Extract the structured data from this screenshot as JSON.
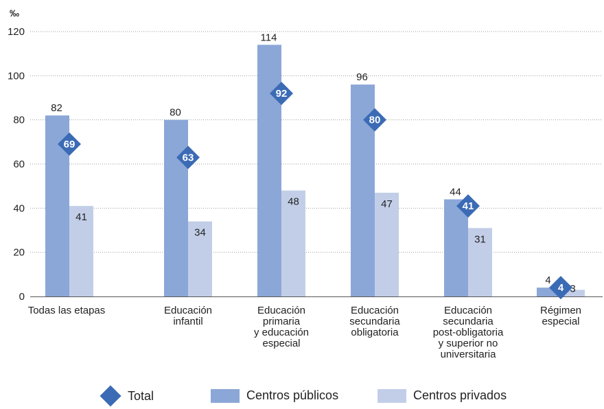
{
  "chart_data": {
    "type": "bar",
    "unit_label": "‰",
    "categories": [
      [
        "Todas las etapas"
      ],
      [
        "Educación",
        "infantil"
      ],
      [
        "Educación",
        "primaria",
        "y educación",
        "especial"
      ],
      [
        "Educación",
        "secundaria",
        "obligatoria"
      ],
      [
        "Educación",
        "secundaria",
        "post-obligatoria",
        "y superior no",
        "universitaria"
      ],
      [
        "Régimen",
        "especial"
      ]
    ],
    "series": [
      {
        "name": "Centros públicos",
        "values": [
          82,
          80,
          114,
          96,
          44,
          4
        ],
        "color": "#8ba7d7"
      },
      {
        "name": "Centros privados",
        "values": [
          41,
          34,
          48,
          47,
          31,
          3
        ],
        "color": "#c2cee8"
      }
    ],
    "total": {
      "name": "Total",
      "values": [
        69,
        63,
        92,
        80,
        41,
        4
      ],
      "color": "#3b6bb5"
    },
    "ylim": [
      0,
      120
    ],
    "yticks": [
      0,
      20,
      40,
      60,
      80,
      100,
      120
    ],
    "grid": true,
    "legend_position": "bottom"
  }
}
